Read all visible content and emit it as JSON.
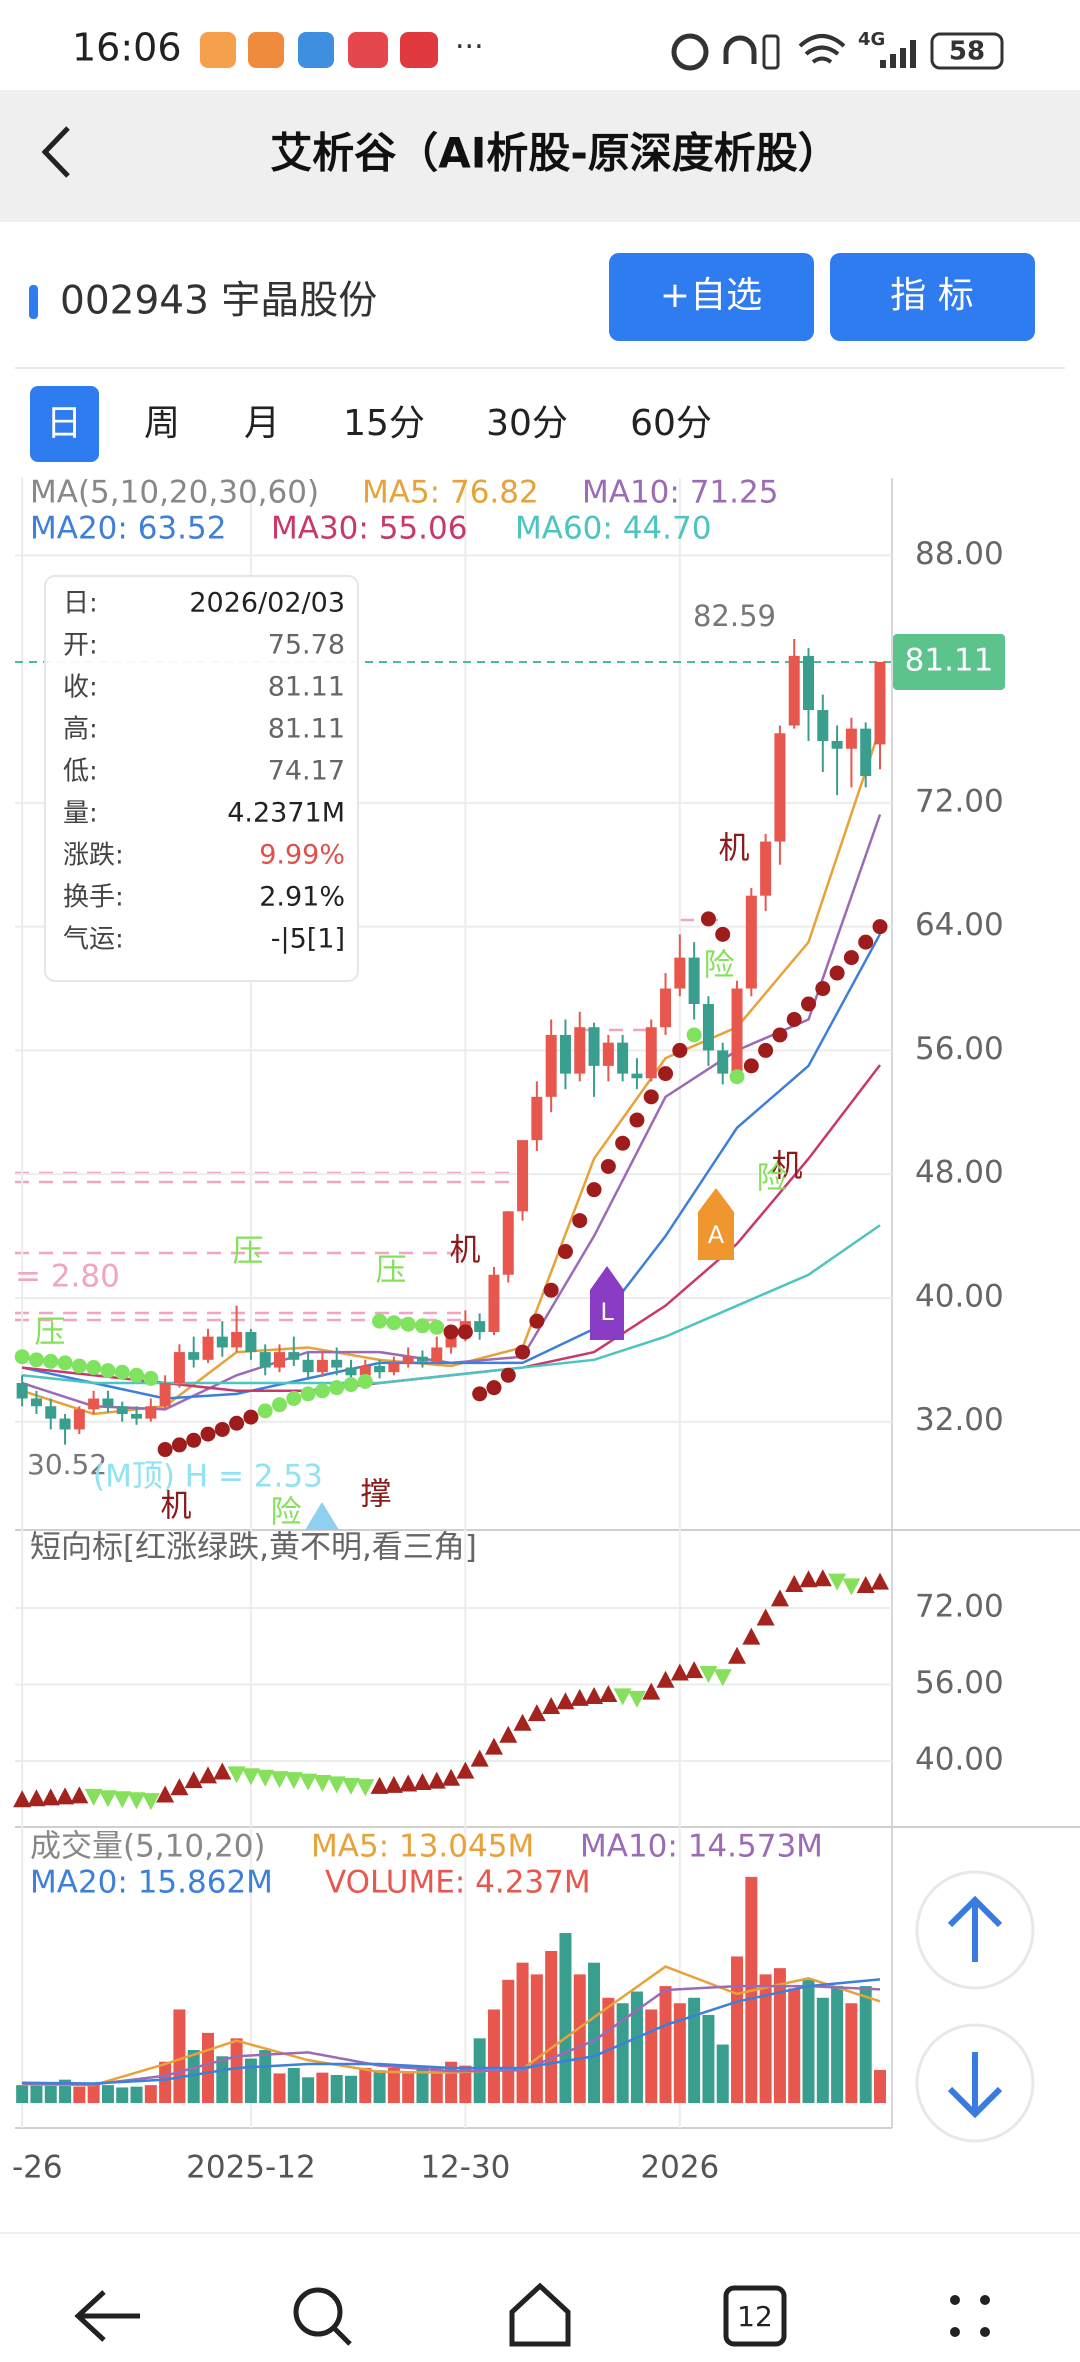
{
  "status_bar": {
    "time": "16:06",
    "dots": "···",
    "network": "4G",
    "battery": "58"
  },
  "header": {
    "title": "艾析谷（AI析股-原深度析股）"
  },
  "stock": {
    "name": "002943 宇晶股份",
    "buttons": [
      "+自选",
      "指 标"
    ]
  },
  "tabs": {
    "items": [
      "日",
      "周",
      "月",
      "15分",
      "30分",
      "60分"
    ],
    "selected": 0
  },
  "info_box": {
    "rows": [
      [
        "日:",
        "2026/02/03"
      ],
      [
        "开:",
        "75.78"
      ],
      [
        "收:",
        "81.11"
      ],
      [
        "高:",
        "81.11"
      ],
      [
        "低:",
        "74.17"
      ],
      [
        "量:",
        "4.2371M"
      ],
      [
        "涨跌:",
        "9.99%"
      ],
      [
        "换手:",
        "2.91%"
      ],
      [
        "气运:",
        "-|5[1]"
      ]
    ]
  },
  "nav": {
    "tabs_badge": "12"
  },
  "chart_data": [
    {
      "type": "candlestick",
      "legend_title": "MA(5,10,20,30,60)",
      "categories": [
        "-26",
        null,
        null,
        null,
        null,
        null,
        null,
        null,
        null,
        null,
        null,
        null,
        null,
        null,
        null,
        null,
        "2025-12",
        null,
        null,
        null,
        null,
        null,
        null,
        null,
        null,
        null,
        null,
        null,
        null,
        null,
        null,
        "12-30",
        null,
        null,
        null,
        null,
        null,
        null,
        null,
        null,
        null,
        null,
        null,
        null,
        null,
        null,
        "2026",
        null,
        null,
        null,
        null,
        null,
        null,
        null,
        null,
        null,
        null,
        null,
        null,
        null,
        null
      ],
      "open": [
        34.5,
        33.5,
        33,
        32.2,
        31.5,
        32.8,
        33.5,
        33,
        32.5,
        32.2,
        33,
        34.5,
        36.5,
        36,
        37.5,
        36.8,
        37.8,
        36.5,
        35.5,
        36.5,
        36,
        35.2,
        36,
        35.5,
        35,
        35.6,
        35.2,
        35.8,
        36.2,
        35.9,
        36.8,
        37.5,
        38.5,
        37.8,
        41.5,
        45.6,
        50.2,
        53,
        57,
        54.5,
        57.5,
        55,
        56.5,
        54.5,
        54.2,
        57.5,
        60,
        62,
        59,
        56,
        54.5,
        60,
        66,
        69.5,
        77,
        81.5,
        78,
        76,
        75.5,
        76.8,
        75.78
      ],
      "close": [
        33.5,
        33,
        32.2,
        31.5,
        32.8,
        33.5,
        33,
        32.5,
        32.2,
        33,
        34.5,
        36.5,
        36,
        37.5,
        36.8,
        37.8,
        36.5,
        35.5,
        36.5,
        36,
        35.2,
        36,
        35.5,
        35,
        35.6,
        35.2,
        35.8,
        36.2,
        35.9,
        36.8,
        37.5,
        38.5,
        37.8,
        41.5,
        45.6,
        50.2,
        53,
        57,
        54.5,
        57.5,
        55,
        56.5,
        54.5,
        54.2,
        57.5,
        60,
        62,
        59,
        56,
        54.5,
        60,
        66,
        69.5,
        76.5,
        81.5,
        78,
        76,
        75.5,
        76.8,
        73.74,
        81.11
      ],
      "high": [
        35,
        34,
        33.5,
        32.5,
        33,
        34,
        34,
        33.3,
        33,
        33.5,
        35,
        37,
        37.5,
        38,
        38.5,
        39.5,
        38,
        37,
        37,
        37.5,
        36.5,
        36.5,
        36.8,
        36,
        36,
        36,
        36.2,
        36.8,
        36.6,
        37.5,
        38,
        39.2,
        39,
        42,
        45.6,
        50.2,
        54,
        58,
        58,
        58.5,
        57.8,
        57,
        57,
        55.5,
        58,
        61,
        63.5,
        63,
        59.5,
        56.5,
        60.5,
        66.5,
        70,
        77,
        82.59,
        82,
        79,
        77,
        77.5,
        77.2,
        81.11
      ],
      "low": [
        33,
        32.5,
        31.5,
        30.52,
        31.2,
        32.5,
        32.6,
        32,
        31.8,
        32,
        32.8,
        34.2,
        35.5,
        35.8,
        36.2,
        36.5,
        36,
        35,
        35.2,
        35.6,
        34.8,
        34.9,
        35,
        34.5,
        34.8,
        34.8,
        35,
        35.5,
        35.5,
        35.7,
        36.4,
        37.2,
        37.3,
        37.6,
        41,
        45,
        49.5,
        52,
        53.5,
        54,
        53,
        54,
        54,
        53.5,
        54,
        57,
        59.5,
        58,
        55,
        53.8,
        54,
        59.5,
        65,
        68,
        76.8,
        76,
        74,
        72.5,
        73,
        73,
        74.17
      ],
      "up_color": "#e8574e",
      "down_color": "#3a9e8f",
      "series": [
        {
          "name": "MA5: 76.82",
          "color": "#e8a23a",
          "x": [
            0,
            5,
            10,
            15,
            20,
            25,
            30,
            35,
            40,
            45,
            50,
            55,
            60
          ],
          "values": [
            34,
            32.5,
            33,
            36.5,
            36.8,
            36,
            35.6,
            36.8,
            49,
            55.5,
            57.5,
            63,
            76.82
          ]
        },
        {
          "name": "MA10: 71.25",
          "color": "#9b6bb5",
          "x": [
            0,
            5,
            10,
            15,
            20,
            25,
            30,
            35,
            40,
            45,
            50,
            55,
            60
          ],
          "values": [
            34.5,
            33,
            32.8,
            35,
            36.5,
            36.5,
            35.8,
            36.2,
            44,
            53,
            56,
            58,
            71.25
          ]
        },
        {
          "name": "MA20: 63.52",
          "color": "#3d7fd9",
          "x": [
            0,
            5,
            10,
            15,
            20,
            25,
            30,
            35,
            40,
            45,
            50,
            55,
            60
          ],
          "values": [
            35.5,
            34.5,
            33.5,
            33.8,
            34.8,
            35.8,
            35.8,
            35.8,
            38,
            44,
            51,
            55,
            63.52
          ]
        },
        {
          "name": "MA30: 55.06",
          "color": "#c8386a",
          "x": [
            0,
            5,
            10,
            15,
            20,
            25,
            30,
            35,
            40,
            45,
            50,
            55,
            60
          ],
          "values": [
            35.5,
            35,
            34.5,
            34,
            34,
            34.5,
            35,
            35.5,
            36.5,
            39.5,
            43.5,
            49,
            55.06
          ]
        },
        {
          "name": "MA60: 44.70",
          "color": "#4cc4c0",
          "x": [
            0,
            5,
            10,
            15,
            20,
            25,
            30,
            35,
            40,
            45,
            50,
            55,
            60
          ],
          "values": [
            35,
            34.5,
            34.5,
            34.5,
            34.5,
            34.5,
            35,
            35.5,
            36,
            37.5,
            39.5,
            41.5,
            44.7
          ]
        }
      ],
      "sar": [
        36.2,
        36,
        35.9,
        35.8,
        35.6,
        35.5,
        35.3,
        35.2,
        35,
        34.8,
        30.2,
        30.5,
        30.8,
        31.2,
        31.5,
        31.9,
        32.3,
        32.7,
        33.1,
        33.5,
        33.8,
        34,
        34.2,
        34.4,
        34.6,
        38.5,
        38.4,
        38.3,
        38.2,
        38.1,
        37.8,
        37.8,
        33.8,
        34.2,
        35,
        36.5,
        38.5,
        40.5,
        43,
        45,
        47,
        48.5,
        50,
        51.5,
        53,
        54.5,
        56,
        57,
        64.5,
        63.5,
        54.3,
        55,
        56,
        57,
        58,
        59,
        60,
        61,
        62,
        63,
        64
      ],
      "sar_colors": [
        "#7fe35f",
        "#7fe35f",
        "#7fe35f",
        "#7fe35f",
        "#7fe35f",
        "#7fe35f",
        "#7fe35f",
        "#7fe35f",
        "#7fe35f",
        "#7fe35f",
        "#9e1c1c",
        "#9e1c1c",
        "#9e1c1c",
        "#9e1c1c",
        "#9e1c1c",
        "#9e1c1c",
        "#9e1c1c",
        "#7fe35f",
        "#7fe35f",
        "#7fe35f",
        "#7fe35f",
        "#7fe35f",
        "#7fe35f",
        "#7fe35f",
        "#7fe35f",
        "#7fe35f",
        "#7fe35f",
        "#7fe35f",
        "#7fe35f",
        "#7fe35f",
        "#9e1c1c",
        "#9e1c1c",
        "#9e1c1c",
        "#9e1c1c",
        "#9e1c1c",
        "#9e1c1c",
        "#9e1c1c",
        "#9e1c1c",
        "#9e1c1c",
        "#9e1c1c",
        "#9e1c1c",
        "#9e1c1c",
        "#9e1c1c",
        "#9e1c1c",
        "#9e1c1c",
        "#9e1c1c",
        "#9e1c1c",
        "#7fe35f",
        "#9e1c1c",
        "#9e1c1c",
        "#7fe35f",
        "#9e1c1c",
        "#9e1c1c",
        "#9e1c1c",
        "#9e1c1c",
        "#9e1c1c",
        "#9e1c1c",
        "#9e1c1c",
        "#9e1c1c",
        "#9e1c1c",
        "#9e1c1c"
      ],
      "ylim": [
        25,
        93
      ],
      "yticks": [
        {
          "value": 88,
          "label": "88.00"
        },
        {
          "value": 72,
          "label": "72.00"
        },
        {
          "value": 64,
          "label": "64.00"
        },
        {
          "value": 56,
          "label": "56.00"
        },
        {
          "value": 48,
          "label": "48.00"
        },
        {
          "value": 40,
          "label": "40.00"
        },
        {
          "value": 32,
          "label": "32.00"
        }
      ],
      "last_price": {
        "value": 81.11,
        "label": "81.11"
      },
      "annotations": [
        "82.59",
        "30.52",
        "= 2.80",
        "(M顶) H = 2.53",
        "机",
        "机",
        "机",
        "机",
        "险",
        "险",
        "险",
        "压",
        "压",
        "压",
        "撑",
        "L",
        "A"
      ],
      "grid": true
    },
    {
      "type": "triangle",
      "title": "短向标[红涨绿跌,黄不明,看三角]",
      "values": [
        32,
        32.2,
        32.4,
        32.6,
        32.8,
        32.5,
        32.2,
        32,
        31.8,
        31.6,
        33,
        34.5,
        36,
        37,
        37.8,
        37.2,
        36.8,
        36.5,
        36.2,
        36,
        35.7,
        35.4,
        35.1,
        34.8,
        34.5,
        34.8,
        35,
        35.3,
        35.6,
        35.9,
        36.5,
        38,
        40.5,
        43,
        45.5,
        48,
        50,
        51.5,
        52.5,
        53.2,
        53.6,
        54,
        53.5,
        53,
        54.5,
        57,
        58.5,
        59,
        58.2,
        57.5,
        62,
        66,
        70,
        74,
        77,
        78,
        78.2,
        77.5,
        76.5,
        76.8,
        77.5
      ],
      "up_color": "#a3241f",
      "down_color": "#86e05c",
      "ylim": [
        26.2,
        88.3
      ],
      "yticks": [
        {
          "value": 72,
          "label": "72.00"
        },
        {
          "value": 56,
          "label": "56.00"
        },
        {
          "value": 40,
          "label": "40.00"
        }
      ]
    },
    {
      "type": "bar",
      "legend_title": "成交量(5,10,20)",
      "values": [
        2.3,
        2.4,
        2.3,
        3,
        2.1,
        2.4,
        2.3,
        2,
        2.1,
        2.3,
        5.3,
        12,
        6.8,
        9,
        6,
        8.3,
        5.7,
        6.8,
        3.8,
        4.5,
        3.3,
        3.9,
        3.6,
        3.5,
        4.5,
        4.2,
        4.5,
        3.8,
        4.8,
        4.5,
        5.3,
        4.8,
        8.3,
        12,
        15.8,
        18,
        16.5,
        19.5,
        21.8,
        16.5,
        18,
        13.5,
        12.8,
        14.3,
        12,
        15,
        12.8,
        13.5,
        11.3,
        7.5,
        18.8,
        29,
        16.5,
        17.3,
        14.7,
        15.8,
        13.5,
        15,
        12.8,
        15,
        4.237
      ],
      "volume_label": "VOLUME: 4.237M",
      "series": [
        {
          "name": "MA5: 13.045M",
          "color": "#e8a23a",
          "x": [
            0,
            5,
            10,
            15,
            20,
            25,
            30,
            35,
            40,
            45,
            50,
            55,
            60
          ],
          "values": [
            2.4,
            2.3,
            5,
            8,
            5.5,
            4,
            3.9,
            4.4,
            11,
            17.5,
            14,
            16,
            13.045
          ]
        },
        {
          "name": "MA10: 14.573M",
          "color": "#9b6bb5",
          "x": [
            0,
            5,
            10,
            15,
            20,
            25,
            30,
            35,
            40,
            45,
            50,
            55,
            60
          ],
          "values": [
            2.5,
            2.4,
            3.5,
            6,
            6.5,
            4.8,
            4.1,
            4.2,
            8,
            14.5,
            15,
            15,
            14.573
          ]
        },
        {
          "name": "MA20: 15.862M",
          "color": "#3d7fd9",
          "x": [
            0,
            5,
            10,
            15,
            20,
            25,
            30,
            35,
            40,
            45,
            50,
            55,
            60
          ],
          "values": [
            2.6,
            2.5,
            3,
            4.5,
            5,
            5,
            4.5,
            4.5,
            6,
            10,
            13,
            15,
            15.862
          ]
        }
      ],
      "ylim": [
        -3.2,
        35.4
      ]
    }
  ]
}
